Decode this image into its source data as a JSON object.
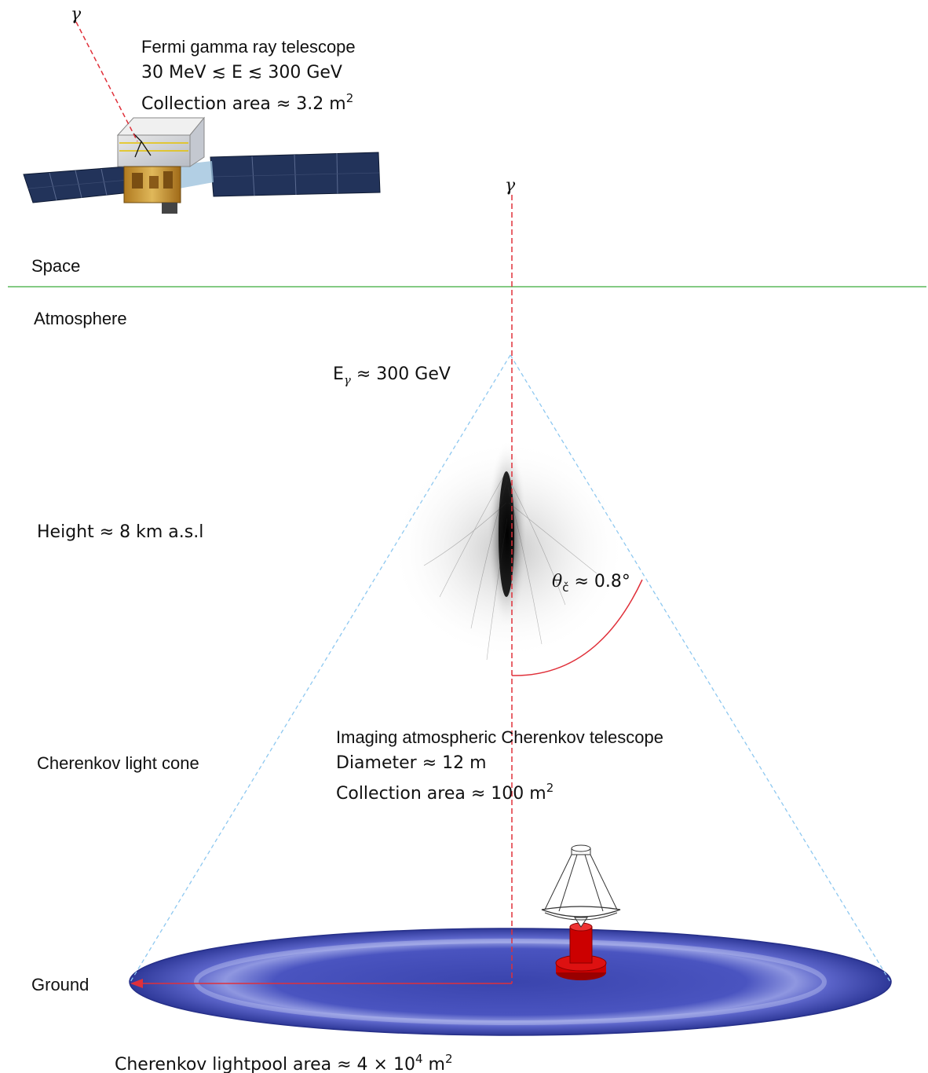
{
  "gamma_symbol": "γ",
  "fermi": {
    "title": "Fermi gamma ray telescope",
    "energy_range_prefix": "30 MeV",
    "energy_range_mid": "E",
    "energy_range_suffix": "300 GeV",
    "lesssim": "≲",
    "collection_area": "Collection area ≈ 3.2 m",
    "collection_area_exp": "2"
  },
  "regions": {
    "space": "Space",
    "atmosphere": "Atmosphere",
    "ground": "Ground"
  },
  "shower": {
    "energy_prefix": "E",
    "energy_sub": "γ",
    "energy_suffix": " ≈ 300 GeV",
    "height": "Height ≈ 8 km a.s.l",
    "angle_symbol": "θ",
    "angle_sub": "č",
    "angle_value": " ≈ 0.8°"
  },
  "cone_label": "Cherenkov light cone",
  "iact": {
    "title": "Imaging atmospheric Cherenkov telescope",
    "diameter": "Diameter ≈ 12 m",
    "collection_area": "Collection area ≈ 100 m",
    "collection_area_exp": "2"
  },
  "lightpool": {
    "label": "Cherenkov lightpool area ≈ 4 × 10",
    "exp1": "4",
    "unit": " m",
    "exp2": "2"
  },
  "colors": {
    "horizon": "#5cb85c",
    "gamma_track": "#e0303a",
    "cone_edge": "#8ec8f0",
    "pool": "#3c45b0",
    "telescope": "#cc0000",
    "panel": "#22335a"
  }
}
